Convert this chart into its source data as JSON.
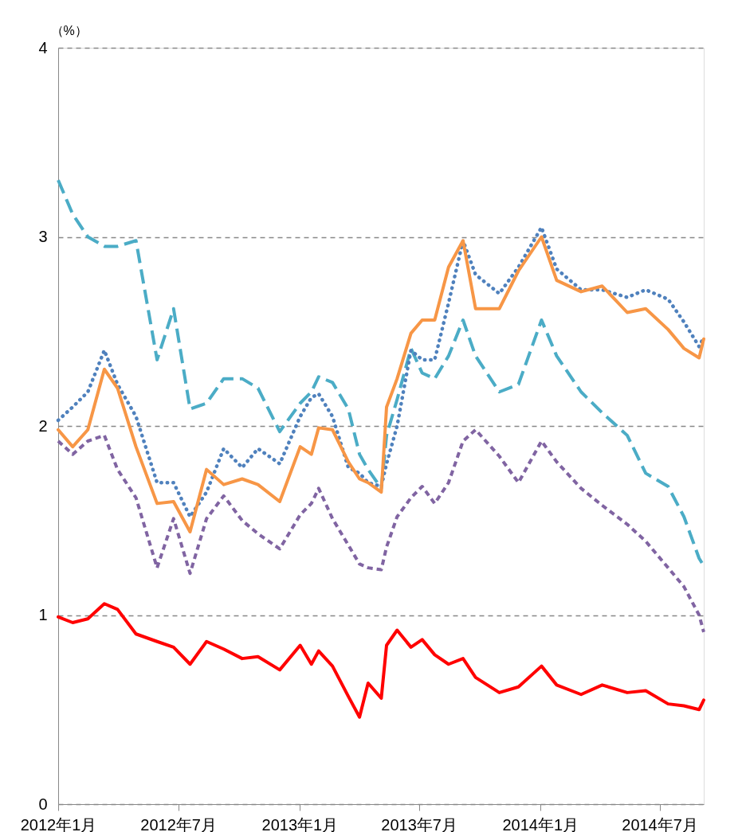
{
  "chart_data": {
    "type": "line",
    "ylabel": "（%）",
    "x": [
      "2012-01-01",
      "2012-01-23",
      "2012-02-15",
      "2012-03-11",
      "2012-03-31",
      "2012-04-28",
      "2012-05-30",
      "2012-06-24",
      "2012-07-19",
      "2012-08-13",
      "2012-09-08",
      "2012-10-06",
      "2012-10-30",
      "2012-12-02",
      "2013-01-02",
      "2013-01-19",
      "2013-01-30",
      "2013-02-20",
      "2013-03-16",
      "2013-04-02",
      "2013-04-15",
      "2013-05-05",
      "2013-05-13",
      "2013-05-29",
      "2013-06-19",
      "2013-07-06",
      "2013-07-25",
      "2013-08-15",
      "2013-09-06",
      "2013-09-25",
      "2013-10-31",
      "2013-11-29",
      "2014-01-03",
      "2014-01-26",
      "2014-03-04",
      "2014-04-05",
      "2014-05-13",
      "2014-06-10",
      "2014-07-14",
      "2014-08-07",
      "2014-08-30",
      "2014-09-06"
    ],
    "series": [
      {
        "color": "#4bacc6",
        "line_style": "long-dashed",
        "values": [
          3.3,
          3.12,
          3.0,
          2.95,
          2.95,
          2.98,
          2.35,
          2.62,
          2.09,
          2.12,
          2.25,
          2.25,
          2.2,
          1.97,
          2.12,
          2.18,
          2.26,
          2.23,
          2.09,
          1.85,
          1.77,
          1.67,
          1.95,
          2.14,
          2.41,
          2.28,
          2.25,
          2.37,
          2.56,
          2.37,
          2.18,
          2.22,
          2.56,
          2.37,
          2.18,
          2.07,
          1.95,
          1.75,
          1.68,
          1.52,
          1.3,
          1.26
        ]
      },
      {
        "color": "#8064a2",
        "line_style": "dashed",
        "values": [
          1.92,
          1.85,
          1.92,
          1.95,
          1.77,
          1.62,
          1.25,
          1.51,
          1.22,
          1.51,
          1.63,
          1.5,
          1.43,
          1.35,
          1.53,
          1.59,
          1.67,
          1.51,
          1.37,
          1.27,
          1.25,
          1.24,
          1.36,
          1.52,
          1.62,
          1.68,
          1.59,
          1.7,
          1.92,
          1.98,
          1.84,
          1.7,
          1.92,
          1.81,
          1.67,
          1.58,
          1.48,
          1.39,
          1.25,
          1.15,
          1.0,
          0.91
        ]
      },
      {
        "color": "#4f81bd",
        "line_style": "dotted",
        "values": [
          2.03,
          2.1,
          2.18,
          2.4,
          2.22,
          2.05,
          1.7,
          1.7,
          1.52,
          1.65,
          1.88,
          1.78,
          1.88,
          1.8,
          2.05,
          2.15,
          2.17,
          2.05,
          1.78,
          1.75,
          1.7,
          1.68,
          1.8,
          2.0,
          2.4,
          2.35,
          2.35,
          2.65,
          2.98,
          2.8,
          2.7,
          2.84,
          3.05,
          2.83,
          2.72,
          2.72,
          2.68,
          2.72,
          2.67,
          2.55,
          2.42,
          2.47
        ]
      },
      {
        "color": "#f79646",
        "line_style": "solid",
        "values": [
          1.98,
          1.89,
          1.98,
          2.3,
          2.2,
          1.89,
          1.59,
          1.6,
          1.44,
          1.77,
          1.69,
          1.72,
          1.69,
          1.6,
          1.89,
          1.85,
          1.99,
          1.98,
          1.81,
          1.72,
          1.7,
          1.65,
          2.1,
          2.25,
          2.49,
          2.56,
          2.56,
          2.84,
          2.98,
          2.62,
          2.62,
          2.82,
          3.0,
          2.77,
          2.71,
          2.74,
          2.6,
          2.62,
          2.51,
          2.41,
          2.36,
          2.46
        ]
      },
      {
        "color": "#ff0000",
        "line_style": "solid",
        "values": [
          0.99,
          0.96,
          0.98,
          1.06,
          1.03,
          0.9,
          0.86,
          0.83,
          0.74,
          0.86,
          0.82,
          0.77,
          0.78,
          0.71,
          0.84,
          0.74,
          0.81,
          0.73,
          0.57,
          0.46,
          0.64,
          0.56,
          0.84,
          0.92,
          0.83,
          0.87,
          0.79,
          0.74,
          0.77,
          0.67,
          0.59,
          0.62,
          0.73,
          0.63,
          0.58,
          0.63,
          0.59,
          0.6,
          0.53,
          0.52,
          0.5,
          0.55
        ]
      }
    ],
    "xlim": [
      "2012-01-01",
      "2014-09-06"
    ],
    "xticks": [
      {
        "value": "2012-01",
        "label": "2012年1月"
      },
      {
        "value": "2012-07",
        "label": "2012年7月"
      },
      {
        "value": "2013-01",
        "label": "2013年1月"
      },
      {
        "value": "2013-07",
        "label": "2013年7月"
      },
      {
        "value": "2014-01",
        "label": "2014年1月"
      },
      {
        "value": "2014-07",
        "label": "2014年7月"
      }
    ],
    "ylim": [
      0,
      4
    ],
    "yticks": [
      0,
      1,
      2,
      3,
      4
    ],
    "grid": "y"
  }
}
